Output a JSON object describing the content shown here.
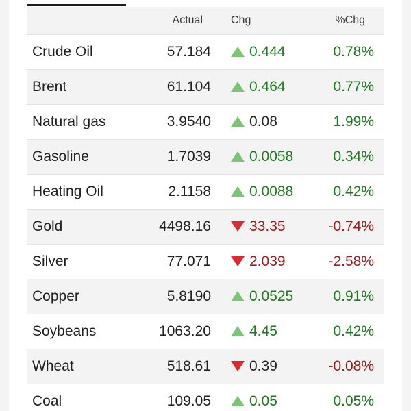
{
  "header": {
    "actual": "Actual",
    "chg": "Chg",
    "pct": "%Chg"
  },
  "colors": {
    "up_arrow": "#7cc576",
    "down_arrow": "#e0292e",
    "positive_text": "#1f7a1f",
    "negative_text": "#a01b1b"
  },
  "rows": [
    {
      "name": "Crude Oil",
      "actual": "57.184",
      "chg": "0.444",
      "direction": "up",
      "chg_tone": "pos",
      "pct": "0.78%",
      "pct_tone": "pos"
    },
    {
      "name": "Brent",
      "actual": "61.104",
      "chg": "0.464",
      "direction": "up",
      "chg_tone": "pos",
      "pct": "0.77%",
      "pct_tone": "pos"
    },
    {
      "name": "Natural gas",
      "actual": "3.9540",
      "chg": "0.08",
      "direction": "up",
      "chg_tone": "neutral",
      "pct": "1.99%",
      "pct_tone": "pos"
    },
    {
      "name": "Gasoline",
      "actual": "1.7039",
      "chg": "0.0058",
      "direction": "up",
      "chg_tone": "pos",
      "pct": "0.34%",
      "pct_tone": "pos"
    },
    {
      "name": "Heating Oil",
      "actual": "2.1158",
      "chg": "0.0088",
      "direction": "up",
      "chg_tone": "pos",
      "pct": "0.42%",
      "pct_tone": "pos"
    },
    {
      "name": "Gold",
      "actual": "4498.16",
      "chg": "33.35",
      "direction": "down",
      "chg_tone": "neg",
      "pct": "-0.74%",
      "pct_tone": "neg"
    },
    {
      "name": "Silver",
      "actual": "77.071",
      "chg": "2.039",
      "direction": "down",
      "chg_tone": "neg",
      "pct": "-2.58%",
      "pct_tone": "neg"
    },
    {
      "name": "Copper",
      "actual": "5.8190",
      "chg": "0.0525",
      "direction": "up",
      "chg_tone": "pos",
      "pct": "0.91%",
      "pct_tone": "pos"
    },
    {
      "name": "Soybeans",
      "actual": "1063.20",
      "chg": "4.45",
      "direction": "up",
      "chg_tone": "pos",
      "pct": "0.42%",
      "pct_tone": "pos"
    },
    {
      "name": "Wheat",
      "actual": "518.61",
      "chg": "0.39",
      "direction": "down",
      "chg_tone": "neutral",
      "pct": "-0.08%",
      "pct_tone": "neg"
    },
    {
      "name": "Coal",
      "actual": "109.05",
      "chg": "0.05",
      "direction": "up",
      "chg_tone": "pos",
      "pct": "0.05%",
      "pct_tone": "pos"
    }
  ]
}
